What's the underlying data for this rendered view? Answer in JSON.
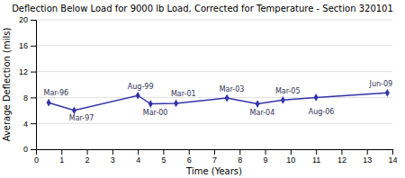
{
  "chart_data": {
    "type": "line",
    "title": "Deflection Below Load for 9000 lb Load, Corrected for Temperature - Section 320101",
    "xlabel": "Time (Years)",
    "ylabel": "Average Deflection (mils)",
    "x": [
      0.5,
      1.5,
      4.0,
      4.5,
      5.5,
      7.5,
      8.7,
      9.7,
      11.0,
      13.8
    ],
    "values": [
      7.2,
      6.0,
      8.3,
      7.0,
      7.1,
      7.9,
      7.0,
      7.6,
      8.0,
      8.7
    ],
    "color": "#3333aa",
    "marker": "diamond",
    "xlim": [
      0,
      14
    ],
    "ylim": [
      0,
      20
    ],
    "xticks": [
      0,
      1,
      2,
      3,
      4,
      5,
      6,
      7,
      8,
      9,
      10,
      11,
      12,
      13,
      14
    ],
    "yticks": [
      0,
      4,
      8,
      12,
      16,
      20
    ],
    "grid": true,
    "annotations": [
      {
        "label": "Mar-96",
        "x": 0.3,
        "y": 8.7
      },
      {
        "label": "Mar-97",
        "x": 1.3,
        "y": 4.8
      },
      {
        "label": "Aug-99",
        "x": 3.6,
        "y": 9.7
      },
      {
        "label": "Mar-00",
        "x": 4.2,
        "y": 5.6
      },
      {
        "label": "Mar-01",
        "x": 5.3,
        "y": 8.5
      },
      {
        "label": "Mar-03",
        "x": 7.2,
        "y": 9.3
      },
      {
        "label": "Mar-04",
        "x": 8.4,
        "y": 5.6
      },
      {
        "label": "Mar-05",
        "x": 9.4,
        "y": 9.0
      },
      {
        "label": "Aug-06",
        "x": 10.7,
        "y": 5.7
      },
      {
        "label": "Jun-09",
        "x": 13.1,
        "y": 10.1
      }
    ]
  }
}
